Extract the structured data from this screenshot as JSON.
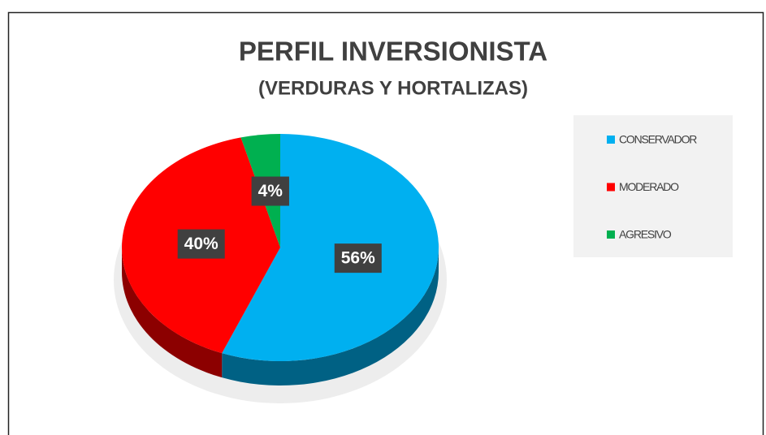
{
  "chart_data": {
    "type": "pie3d",
    "title": "PERFIL INVERSIONISTA",
    "subtitle": "(VERDURAS Y HORTALIZAS)",
    "categories": [
      "CONSERVADOR",
      "MODERADO",
      "AGRESIVO"
    ],
    "values": [
      56,
      40,
      4
    ],
    "value_labels": [
      "56%",
      "40%",
      "4%"
    ],
    "colors": [
      "#00b0f0",
      "#ff0000",
      "#00b050"
    ],
    "legend": "right"
  }
}
